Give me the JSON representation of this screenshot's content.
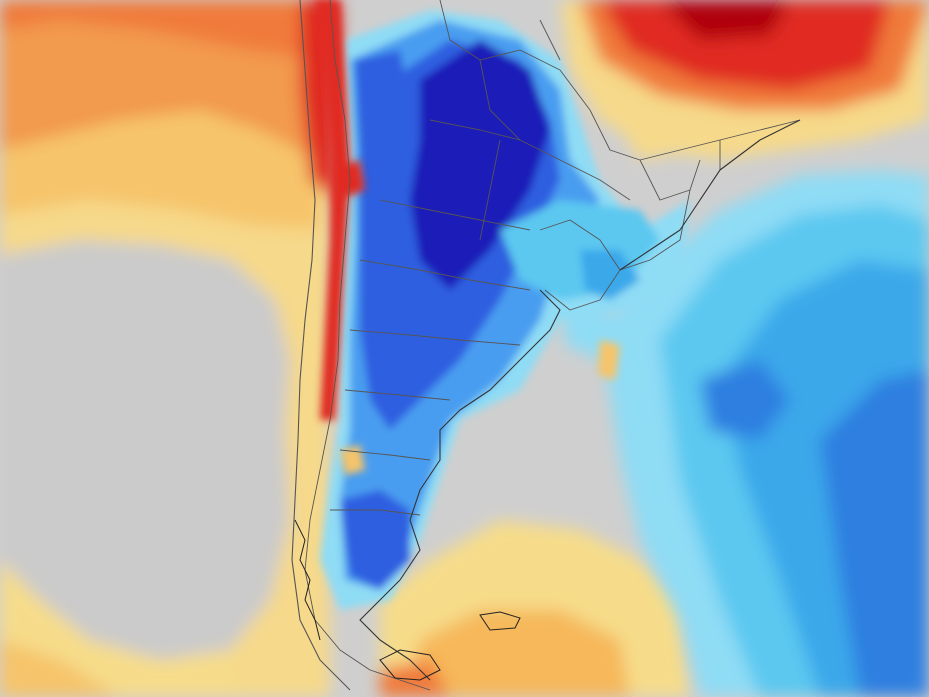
{
  "map": {
    "type": "temperature-anomaly-map",
    "region": "southern-south-america",
    "palette": {
      "strong_cold": "#1f1fb8",
      "cold": "#2f5fe0",
      "cool": "#4a9df0",
      "slightly_cool": "#8fdcf5",
      "neutral": "#c9c9c9",
      "slightly_warm": "#f5eaa0",
      "warm": "#f6c46a",
      "hot": "#f07a3a",
      "very_hot": "#e02a20",
      "extreme_hot": "#b00010"
    },
    "features": [
      "cold-anomaly-argentina",
      "warm-anomaly-pacific",
      "warm-anomaly-brazil",
      "cool-anomaly-atlantic",
      "border-lines"
    ]
  }
}
